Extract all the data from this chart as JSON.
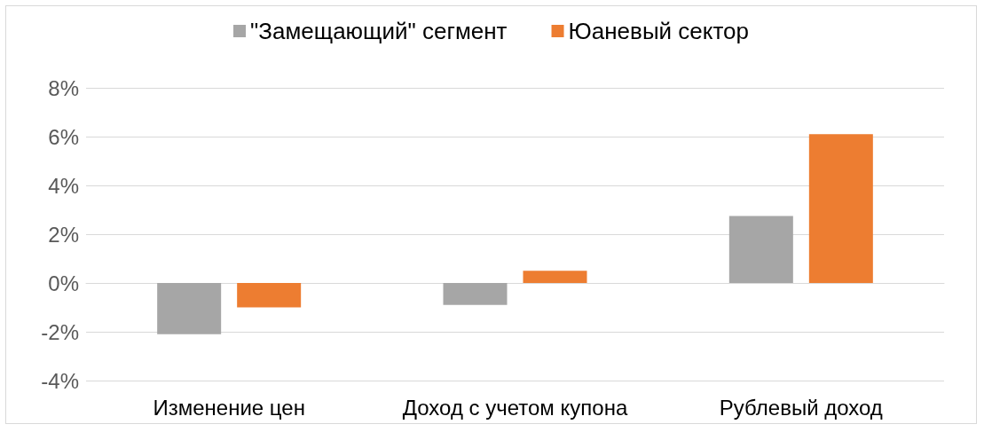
{
  "chart_data": {
    "type": "bar",
    "categories": [
      "Изменение цен",
      "Доход с учетом купона",
      "Рублевый доход"
    ],
    "series": [
      {
        "name": "\"Замещающий\" сегмент",
        "color": "#a6a6a6",
        "values": [
          -2.1,
          -0.9,
          2.75
        ]
      },
      {
        "name": "Юаневый сектор",
        "color": "#ed7d31",
        "values": [
          -1.0,
          0.5,
          6.1
        ]
      }
    ],
    "ylim": [
      -4,
      8
    ],
    "yticks": [
      {
        "value": -4,
        "label": "-4%"
      },
      {
        "value": -2,
        "label": "-2%"
      },
      {
        "value": 0,
        "label": "0%"
      },
      {
        "value": 2,
        "label": "2%"
      },
      {
        "value": 4,
        "label": "4%"
      },
      {
        "value": 6,
        "label": "6%"
      },
      {
        "value": 8,
        "label": "8%"
      }
    ],
    "grid": "y",
    "legend": "top"
  }
}
